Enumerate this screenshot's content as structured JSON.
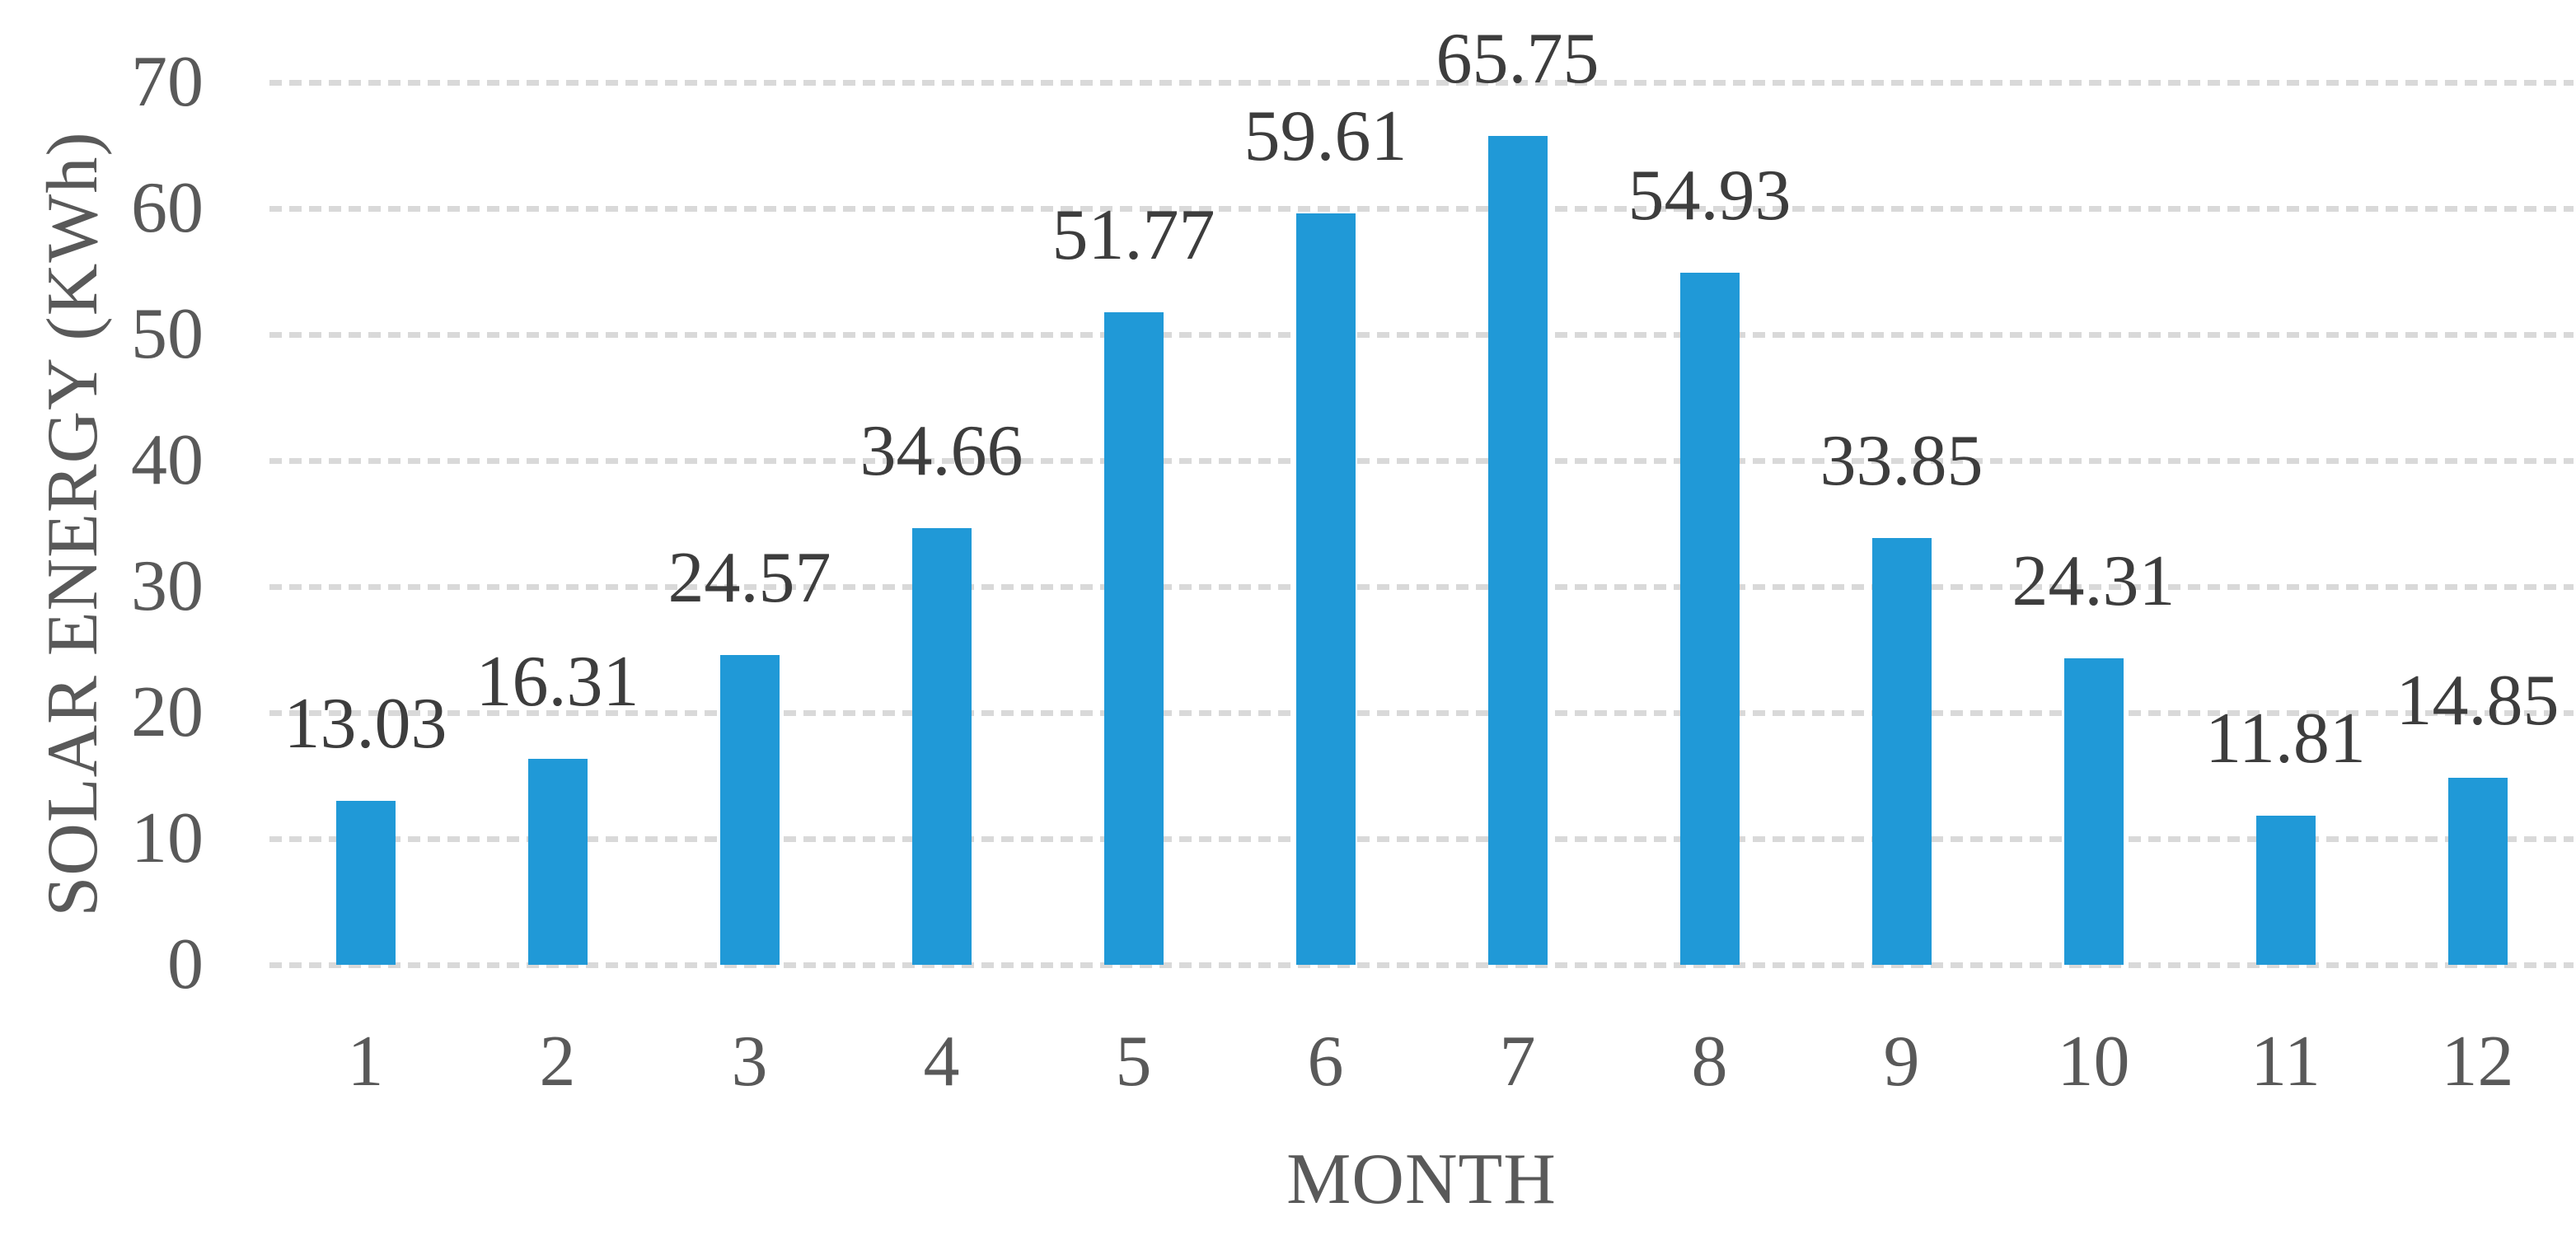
{
  "figure": {
    "background_color": "#ffffff"
  },
  "chart_data": {
    "type": "bar",
    "title": "",
    "categories": [
      "1",
      "2",
      "3",
      "4",
      "5",
      "6",
      "7",
      "8",
      "9",
      "10",
      "11",
      "12"
    ],
    "values": [
      13.03,
      16.31,
      24.57,
      34.66,
      51.77,
      59.61,
      65.75,
      54.93,
      33.85,
      24.31,
      11.81,
      14.85
    ],
    "data_labels": [
      "13.03",
      "16.31",
      "24.57",
      "34.66",
      "51.77",
      "59.61",
      "65.75",
      "54.93",
      "33.85",
      "24.31",
      "11.81",
      "14.85"
    ],
    "xlabel": "MONTH",
    "ylabel": "SOLAR ENERGY (KWh)",
    "ylim": [
      0,
      70
    ],
    "yticks": [
      0,
      10,
      20,
      30,
      40,
      50,
      60,
      70
    ],
    "grid": "horizontal, dashed, on",
    "legend": "none",
    "bar_color": "#2099d7",
    "grid_color": "#d9d9d9",
    "tick_label_color": "#595959",
    "data_label_color": "#3d3d3d"
  }
}
